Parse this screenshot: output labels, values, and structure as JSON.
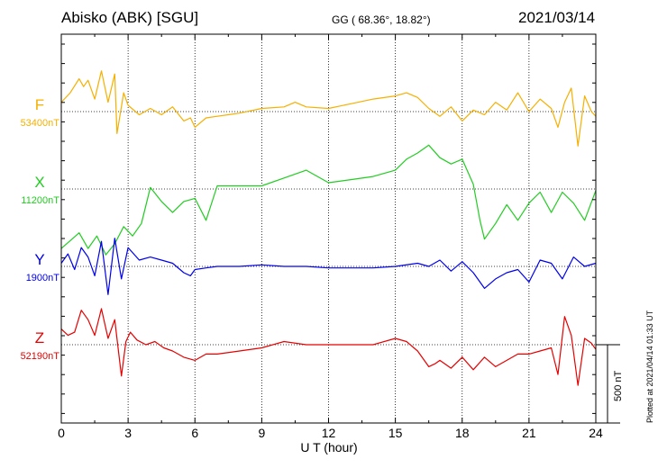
{
  "header": {
    "station": "Abisko (ABK)  [SGU]",
    "coords": "GG ( 68.36°,  18.82°)",
    "date": "2021/03/14"
  },
  "footer": {
    "plotted": "Plotted at 2021/04/14 01:33 UT",
    "scale_label": "500 nT"
  },
  "chart_data": {
    "type": "line",
    "xlabel": "U T (hour)",
    "xlim": [
      0,
      24
    ],
    "xticks": [
      "0",
      "3",
      "6",
      "9",
      "12",
      "15",
      "18",
      "21",
      "24"
    ],
    "grid": true,
    "scale_bar_nT": 500,
    "series": [
      {
        "name": "F",
        "baseline_label": "53400nT",
        "baseline": 53400,
        "color": "#f5b000",
        "x": [
          0,
          0.4,
          0.8,
          1.0,
          1.2,
          1.5,
          1.8,
          2.1,
          2.4,
          2.5,
          2.8,
          3.0,
          3.5,
          4.0,
          4.5,
          5.0,
          5.5,
          5.8,
          6.0,
          6.5,
          7.0,
          8.0,
          9.0,
          10.0,
          10.5,
          11.0,
          12.0,
          13.0,
          14.0,
          15.0,
          15.5,
          16.0,
          16.5,
          17.0,
          17.5,
          18.0,
          18.5,
          19.0,
          19.5,
          20.0,
          20.5,
          21.0,
          21.5,
          22.0,
          22.3,
          22.6,
          22.9,
          23.2,
          23.5,
          23.8,
          24.0
        ],
        "values": [
          60,
          120,
          210,
          160,
          200,
          80,
          260,
          60,
          240,
          -140,
          120,
          40,
          -20,
          20,
          -20,
          30,
          -60,
          -40,
          -100,
          -40,
          -30,
          -10,
          20,
          30,
          60,
          30,
          20,
          50,
          80,
          100,
          120,
          90,
          20,
          -30,
          30,
          -60,
          10,
          -20,
          60,
          10,
          120,
          0,
          80,
          20,
          -100,
          60,
          150,
          -220,
          100,
          0,
          -30
        ]
      },
      {
        "name": "X",
        "baseline_label": "11200nT",
        "baseline": 11200,
        "color": "#22cc22",
        "x": [
          0,
          0.4,
          0.8,
          1.2,
          1.6,
          2.0,
          2.4,
          2.8,
          3.2,
          3.6,
          4.0,
          4.5,
          5.0,
          5.5,
          6.0,
          6.5,
          7.0,
          8.0,
          9.0,
          10.0,
          11.0,
          12.0,
          13.0,
          14.0,
          15.0,
          15.5,
          16.0,
          16.5,
          17.0,
          17.5,
          18.0,
          18.5,
          18.8,
          19.0,
          19.2,
          19.5,
          20.0,
          20.5,
          21.0,
          21.5,
          22.0,
          22.5,
          23.0,
          23.5,
          24.0
        ],
        "values": [
          -380,
          -330,
          -280,
          -380,
          -300,
          -420,
          -350,
          -240,
          -300,
          -220,
          10,
          -80,
          -150,
          -80,
          -60,
          -200,
          20,
          20,
          20,
          70,
          120,
          40,
          60,
          80,
          120,
          190,
          230,
          280,
          200,
          160,
          190,
          30,
          -200,
          -320,
          -280,
          -220,
          -100,
          -200,
          -90,
          -20,
          -150,
          -20,
          -90,
          -200,
          -10
        ]
      },
      {
        "name": "Y",
        "baseline_label": "1900nT",
        "baseline": 1900,
        "color": "#0000ee",
        "x": [
          0,
          0.3,
          0.6,
          0.9,
          1.2,
          1.5,
          1.8,
          2.1,
          2.4,
          2.7,
          3.0,
          3.5,
          4.0,
          4.5,
          5.0,
          5.5,
          5.8,
          6.0,
          6.5,
          7.0,
          8.0,
          9.0,
          10.0,
          11.0,
          12.0,
          13.0,
          14.0,
          15.0,
          16.0,
          16.5,
          17.0,
          17.5,
          18.0,
          18.5,
          19.0,
          19.5,
          20.0,
          20.5,
          21.0,
          21.5,
          22.0,
          22.5,
          23.0,
          23.5,
          24.0
        ],
        "values": [
          20,
          80,
          -20,
          120,
          60,
          -60,
          160,
          -180,
          180,
          -80,
          120,
          40,
          60,
          40,
          20,
          -40,
          -60,
          -20,
          -10,
          0,
          0,
          10,
          0,
          0,
          -10,
          -10,
          -10,
          0,
          20,
          0,
          40,
          -30,
          30,
          -40,
          -140,
          -80,
          -40,
          -20,
          -100,
          40,
          20,
          -80,
          60,
          0,
          20
        ]
      },
      {
        "name": "Z",
        "baseline_label": "52190nT",
        "baseline": 52190,
        "color": "#e60000",
        "x": [
          0,
          0.3,
          0.6,
          0.9,
          1.2,
          1.5,
          1.8,
          2.1,
          2.4,
          2.7,
          2.9,
          3.1,
          3.4,
          3.8,
          4.2,
          4.6,
          5.0,
          5.5,
          6.0,
          6.5,
          7.0,
          8.0,
          9.0,
          10.0,
          11.0,
          12.0,
          13.0,
          14.0,
          15.0,
          15.5,
          16.0,
          16.5,
          16.8,
          17.0,
          17.5,
          18.0,
          18.5,
          19.0,
          19.5,
          20.0,
          20.5,
          21.0,
          21.5,
          22.0,
          22.3,
          22.6,
          22.9,
          23.2,
          23.5,
          23.8,
          24.0
        ],
        "values": [
          100,
          60,
          80,
          220,
          160,
          60,
          230,
          40,
          160,
          -200,
          20,
          80,
          30,
          0,
          20,
          -20,
          -40,
          -80,
          -100,
          -60,
          -60,
          -40,
          -20,
          20,
          0,
          0,
          0,
          0,
          40,
          20,
          -40,
          -140,
          -120,
          -100,
          -150,
          -80,
          -160,
          -80,
          -140,
          -100,
          -60,
          -60,
          -40,
          -20,
          -190,
          180,
          60,
          -260,
          40,
          10,
          -30
        ]
      }
    ]
  }
}
